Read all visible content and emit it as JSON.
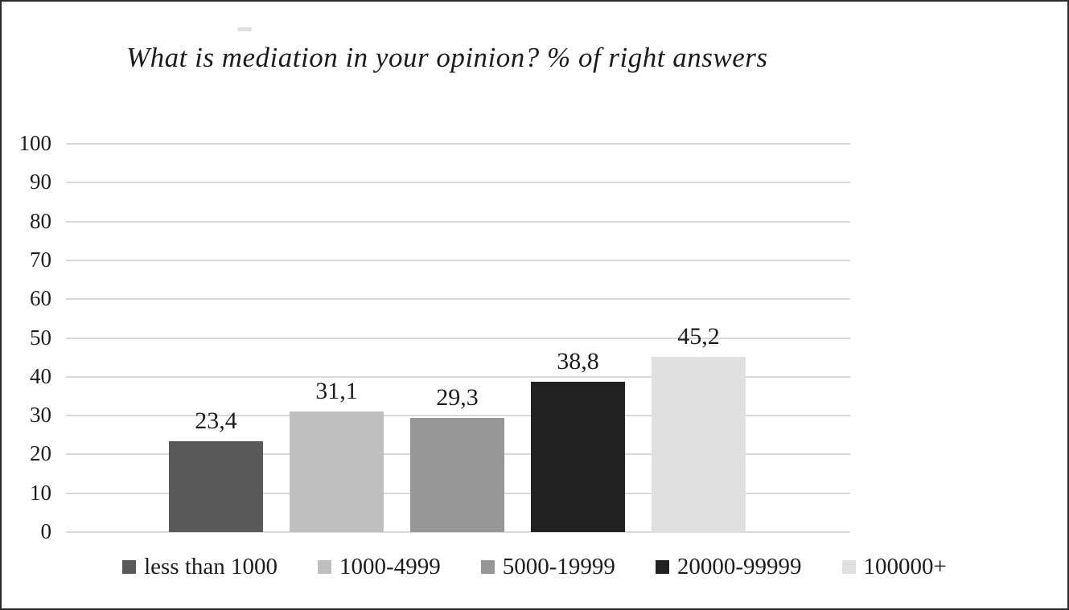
{
  "chart_data": {
    "type": "bar",
    "title": "What is mediation in your opinion? % of right answers",
    "categories": [
      "less than 1000",
      "1000-4999",
      "5000-19999",
      "20000-99999",
      "100000+"
    ],
    "values": [
      23.4,
      31.1,
      29.3,
      38.8,
      45.2
    ],
    "value_labels": [
      "23,4",
      "31,1",
      "29,3",
      "38,8",
      "45,2"
    ],
    "bar_colors": [
      "#595959",
      "#bfbfbf",
      "#969696",
      "#212121",
      "#e0e0e0"
    ],
    "xlabel": "",
    "ylabel": "",
    "ylim": [
      0,
      100
    ],
    "y_ticks": [
      "0",
      "10",
      "20",
      "30",
      "40",
      "50",
      "60",
      "70",
      "80",
      "90",
      "100"
    ],
    "grid": "horizontal",
    "gridline_color": "#d9d9d9",
    "legend_position": "bottom",
    "text_color": "#1c1c1c"
  }
}
